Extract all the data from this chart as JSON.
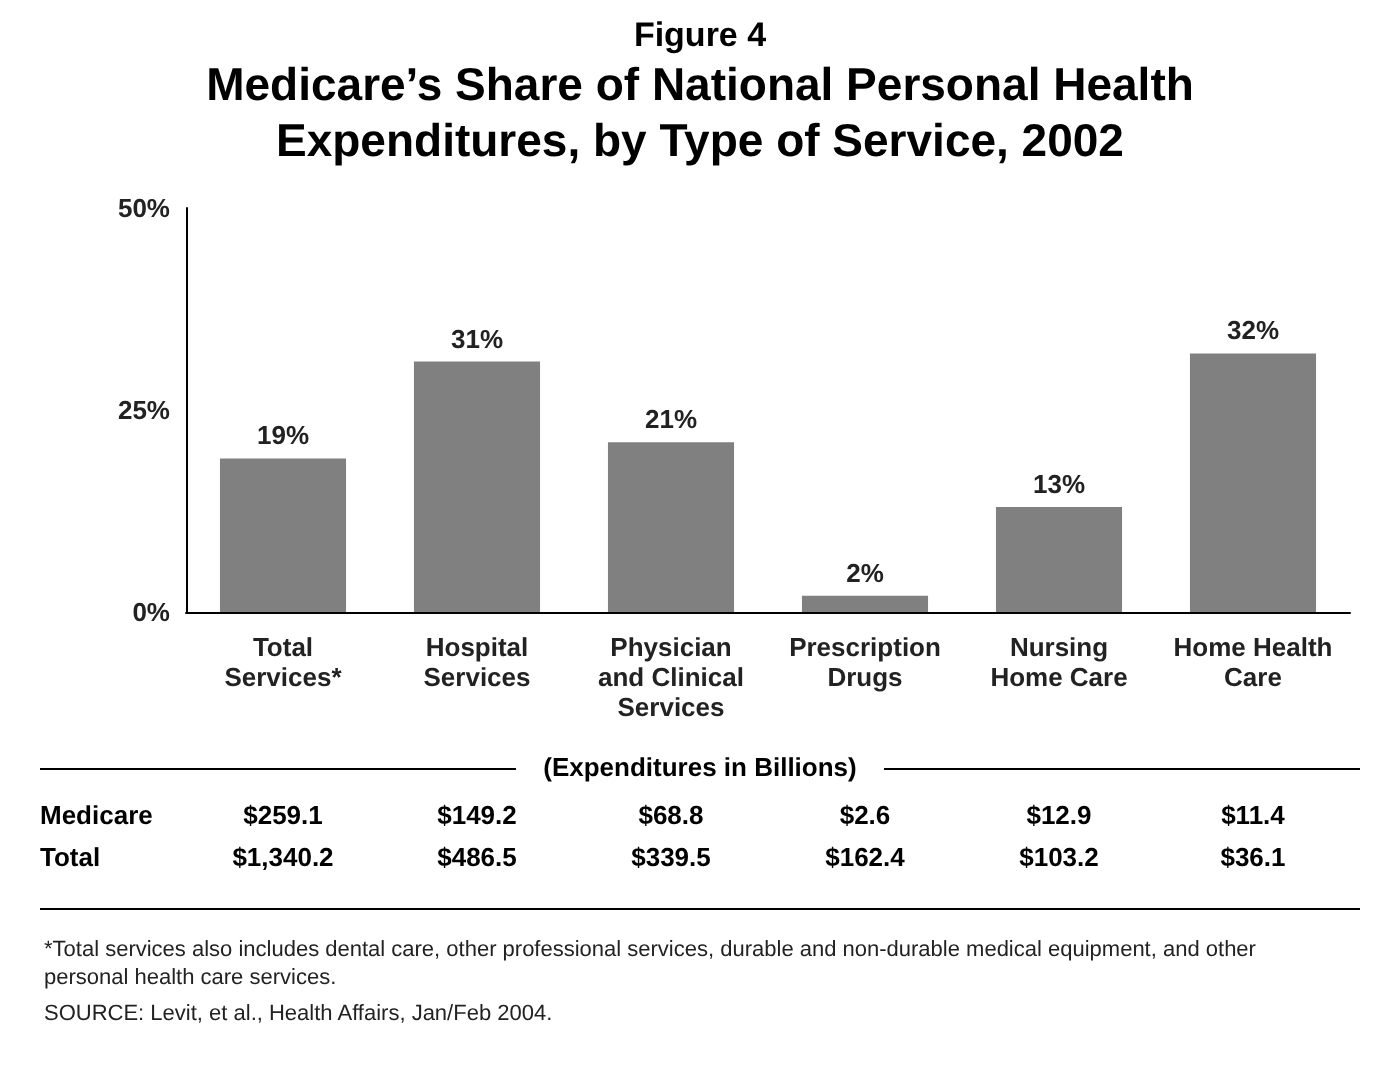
{
  "chart_data": [
    {
      "type": "bar",
      "subtitle": "Figure 4",
      "title": "Medicare’s Share of National Personal Health Expenditures, by Type of Service, 2002",
      "categories": [
        "Total\nServices*",
        "Hospital\nServices",
        "Physician\nand Clinical\nServices",
        "Prescription\nDrugs",
        "Nursing\nHome Care",
        "Home Health\nCare"
      ],
      "values": [
        19,
        31,
        21,
        2,
        13,
        32
      ],
      "value_labels": [
        "19%",
        "31%",
        "21%",
        "2%",
        "13%",
        "32%"
      ],
      "color": "#808080",
      "ylim": [
        0,
        50
      ],
      "yticks": [
        {
          "value": 0,
          "label": "0%"
        },
        {
          "value": 25,
          "label": "25%"
        },
        {
          "value": 50,
          "label": "50%"
        }
      ],
      "grid": false,
      "annotations": [
        "*Total services also includes dental care, other professional services, durable and non-durable medical equipment, and other personal health care services.",
        "SOURCE: Levit, et al., Health Affairs, Jan/Feb 2004."
      ]
    },
    {
      "type": "other",
      "title": "(Expenditures in Billions)",
      "y_categories": [
        "Medicare",
        "Total"
      ],
      "cell_labels": [
        [
          "$259.1",
          "$149.2",
          "$68.8",
          "$2.6",
          "$12.9",
          "$11.4"
        ],
        [
          "$1,340.2",
          "$486.5",
          "$339.5",
          "$162.4",
          "$103.2",
          "$36.1"
        ]
      ]
    }
  ]
}
